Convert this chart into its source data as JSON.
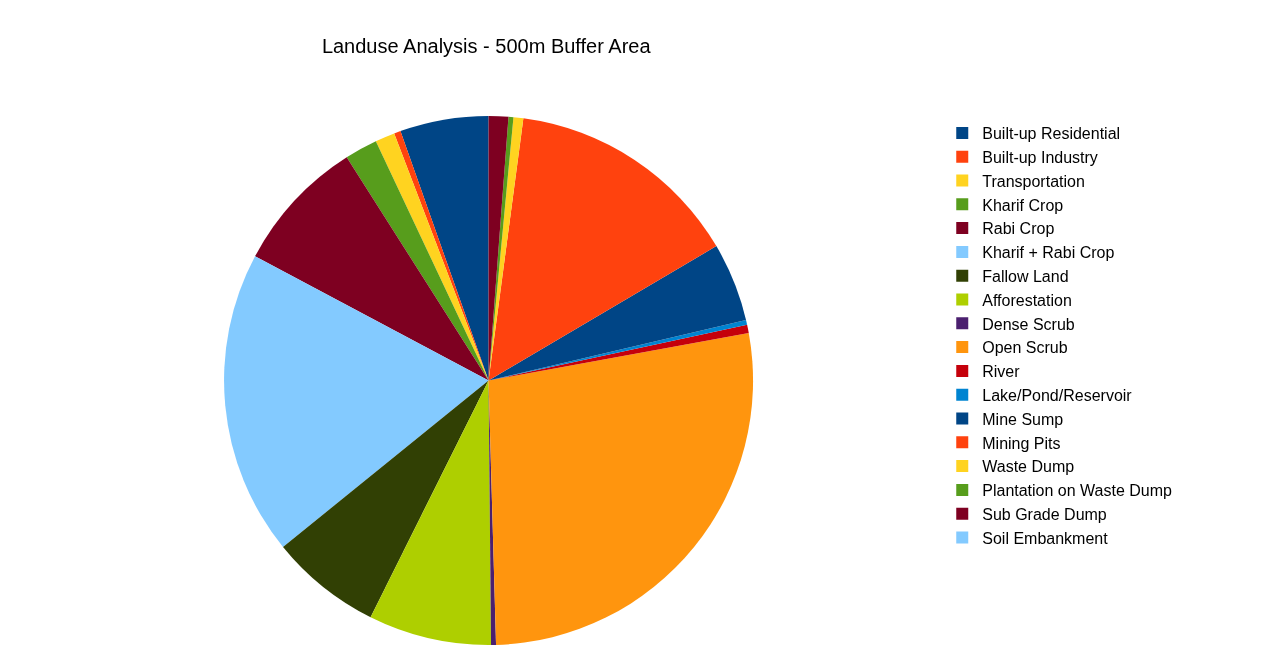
{
  "chart_data": {
    "type": "pie",
    "title": "Landuse Analysis - 500m Buffer Area",
    "categories": [
      "Built-up Residential",
      "Built-up Industry",
      "Transportation",
      "Kharif Crop",
      "Rabi Crop",
      "Kharif + Rabi Crop",
      "Fallow Land",
      "Afforestation",
      "Dense Scrub",
      "Open Scrub",
      "River",
      "Lake/Pond/Reservoir",
      "Mine Sump",
      "Mining Pits",
      "Waste Dump",
      "Plantation on Waste Dump",
      "Sub Grade Dump",
      "Soil Embankment"
    ],
    "values": [
      5.4,
      0.4,
      1.2,
      2.0,
      8.2,
      18.6,
      6.8,
      7.5,
      0.3,
      27.4,
      0.5,
      0.3,
      4.8,
      14.4,
      0.6,
      0.3,
      1.2,
      null
    ],
    "colors": [
      "#004586",
      "#ff420e",
      "#ffd320",
      "#579d1c",
      "#7e0021",
      "#83caff",
      "#314004",
      "#aecf00",
      "#4b1f6f",
      "#ff950e",
      "#c5000b",
      "#0084d1",
      "#004586",
      "#ff420e",
      "#ffd320",
      "#579d1c",
      "#7e0021",
      "#83caff"
    ],
    "legend": "right"
  }
}
